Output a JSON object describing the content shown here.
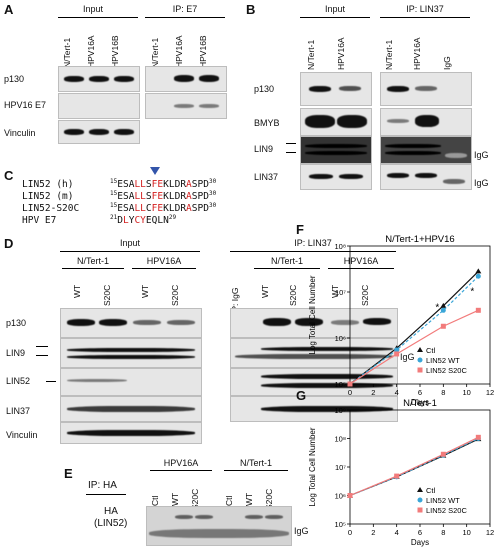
{
  "panelA": {
    "label": "A",
    "input_header": "Input",
    "ip_header": "IP: E7",
    "lanes": [
      "N/Tert-1",
      "HPV16A",
      "HPV16B"
    ],
    "rows": [
      "p130",
      "HPV16 E7",
      "Vinculin"
    ]
  },
  "panelB": {
    "label": "B",
    "input_header": "Input",
    "ip_header": "IP: LIN37",
    "input_lanes": [
      "N/Tert-1",
      "HPV16A"
    ],
    "ip_lanes": [
      "N/Tert-1",
      "HPV16A",
      "IgG"
    ],
    "rows": [
      "p130",
      "BMYB",
      "LIN9",
      "LIN37"
    ],
    "igg1": "IgG",
    "igg2": "IgG"
  },
  "panelC": {
    "label": "C",
    "rows": [
      {
        "name": "LIN52 (h)",
        "start": "15",
        "end": "30",
        "seq": "ESALLSFEKLDRASPD"
      },
      {
        "name": "LIN52 (m)",
        "start": "15",
        "end": "30",
        "seq": "ESALLSFEKLDRASPD"
      },
      {
        "name": "LIN52-S20C",
        "start": "15",
        "end": "30",
        "seq": "ESALLCFEKLDRASPD"
      },
      {
        "name": "HPV E7",
        "start": "21",
        "end": "29",
        "seq": "DLYCYEQLN"
      }
    ]
  },
  "panelD": {
    "label": "D",
    "input_header": "Input",
    "ip_header": "IP: LIN37",
    "group1": "N/Tert-1",
    "group2": "HPV16A",
    "group3": "N/Tert-1",
    "group4": "HPV16A",
    "lanes": [
      "WT",
      "S20C",
      "WT",
      "S20C"
    ],
    "ip_igg": "IP: IgG",
    "ip_lanes": [
      "WT",
      "S20C",
      "WT",
      "S20C"
    ],
    "rows": [
      "p130",
      "LIN9",
      "LIN52",
      "LIN37",
      "Vinculin"
    ],
    "igg": "IgG"
  },
  "panelE": {
    "label": "E",
    "ip_label": "IP: HA",
    "group1": "HPV16A",
    "group2": "N/Tert-1",
    "lanes": [
      "Ctl",
      "WT",
      "S20C",
      "Ctl",
      "WT",
      "S20C"
    ],
    "row_label_1": "HA",
    "row_label_2": "(LIN52)",
    "igg": "IgG"
  },
  "panelF": {
    "label": "F",
    "chart_data": {
      "type": "line",
      "title": "N/Tert-1+HPV16",
      "xlabel": "Days",
      "ylabel": "Log Total Cell Number",
      "x": [
        0,
        4,
        8,
        11
      ],
      "xlim": [
        0,
        12
      ],
      "ylim_log10": [
        5,
        8
      ],
      "yticks": [
        "10⁵",
        "10⁶",
        "10⁷",
        "10⁸"
      ],
      "xticks": [
        "0",
        "2",
        "4",
        "6",
        "8",
        "10",
        "12"
      ],
      "series": [
        {
          "name": "Ctl",
          "values": [
            100000,
            600000,
            5000000,
            28000000
          ],
          "color": "#111111"
        },
        {
          "name": "LIN52 WT",
          "values": [
            100000,
            550000,
            4000000,
            22000000
          ],
          "color": "#3aa6d8"
        },
        {
          "name": "LIN52 S20C",
          "values": [
            100000,
            450000,
            1800000,
            4000000
          ],
          "color": "#f27b7b"
        }
      ],
      "annotations": [
        "*",
        "*"
      ]
    }
  },
  "panelG": {
    "label": "G",
    "chart_data": {
      "type": "line",
      "title": "N/Tert-1",
      "xlabel": "Days",
      "ylabel": "Log Total Cell Number",
      "x": [
        0,
        4,
        8,
        11
      ],
      "xlim": [
        0,
        12
      ],
      "ylim_log10": [
        5,
        9
      ],
      "yticks": [
        "10⁵",
        "10⁶",
        "10⁷",
        "10⁸",
        "10⁹"
      ],
      "xticks": [
        "0",
        "2",
        "4",
        "6",
        "8",
        "10",
        "12"
      ],
      "series": [
        {
          "name": "Ctl",
          "values": [
            1000000,
            4500000,
            25000000,
            95000000
          ],
          "color": "#111111"
        },
        {
          "name": "LIN52 WT",
          "values": [
            1000000,
            4500000,
            26000000,
            100000000
          ],
          "color": "#3aa6d8"
        },
        {
          "name": "LIN52 S20C",
          "values": [
            1000000,
            4800000,
            28000000,
            110000000
          ],
          "color": "#f27b7b"
        }
      ]
    }
  }
}
